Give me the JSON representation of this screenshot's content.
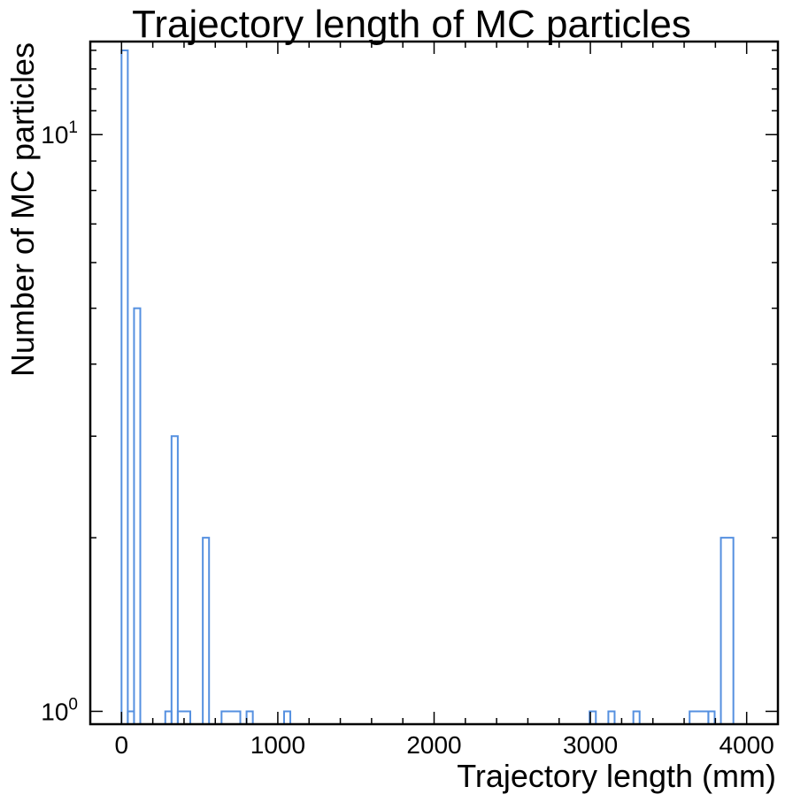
{
  "chart_data": {
    "type": "histogram",
    "title": "Trajectory length of MC particles",
    "xlabel": "Trajectory length (mm)",
    "ylabel": "Number of MC particles",
    "xlim": [
      -200,
      4200
    ],
    "ylim": [
      0.95,
      14.5
    ],
    "yscale": "log",
    "x_ticks": [
      0,
      1000,
      2000,
      3000,
      4000
    ],
    "x_tick_labels": [
      "0",
      "1000",
      "2000",
      "3000",
      "4000"
    ],
    "y_tick_labels": [
      {
        "value": 1,
        "base": "10",
        "exp": "0"
      },
      {
        "value": 10,
        "base": "10",
        "exp": "1"
      }
    ],
    "line_color": "#5590e0",
    "bins": [
      {
        "x0": 0,
        "x1": 40,
        "count": 14
      },
      {
        "x0": 40,
        "x1": 80,
        "count": 1
      },
      {
        "x0": 80,
        "x1": 120,
        "count": 5
      },
      {
        "x0": 280,
        "x1": 320,
        "count": 1
      },
      {
        "x0": 320,
        "x1": 360,
        "count": 3
      },
      {
        "x0": 360,
        "x1": 440,
        "count": 1
      },
      {
        "x0": 520,
        "x1": 560,
        "count": 2
      },
      {
        "x0": 640,
        "x1": 760,
        "count": 1
      },
      {
        "x0": 800,
        "x1": 840,
        "count": 1
      },
      {
        "x0": 1040,
        "x1": 1080,
        "count": 1
      },
      {
        "x0": 2995,
        "x1": 3035,
        "count": 1
      },
      {
        "x0": 3115,
        "x1": 3155,
        "count": 1
      },
      {
        "x0": 3275,
        "x1": 3315,
        "count": 1
      },
      {
        "x0": 3635,
        "x1": 3755,
        "count": 1
      },
      {
        "x0": 3755,
        "x1": 3795,
        "count": 1
      },
      {
        "x0": 3835,
        "x1": 3915,
        "count": 2
      }
    ]
  }
}
